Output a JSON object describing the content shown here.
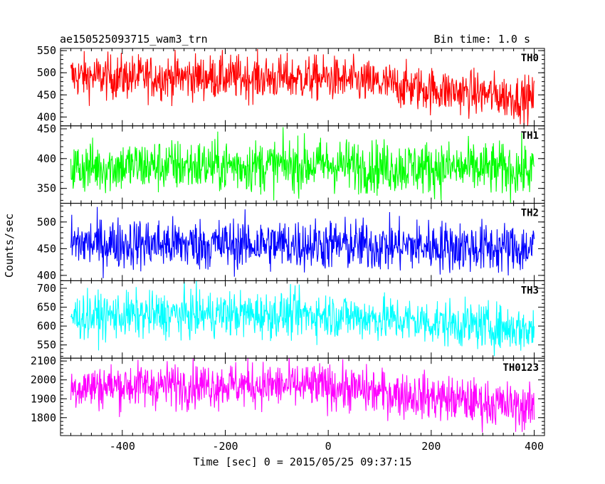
{
  "header": {
    "left": "ae150525093715_wam3_trn",
    "right": "Bin time: 1.0 s"
  },
  "chart_data": {
    "type": "line",
    "xlabel": "Time [sec] 0 = 2015/05/25 09:37:15",
    "ylabel": "Counts/sec",
    "xlim": [
      -520,
      420
    ],
    "xticks": [
      -400,
      -200,
      0,
      200,
      400
    ],
    "x_range": [
      -500,
      400
    ],
    "bin_time_s": 1.0,
    "panels": [
      {
        "name": "TH0",
        "color": "#ff0000",
        "ylim": [
          380,
          555
        ],
        "yticks": [
          400,
          450,
          500,
          550
        ],
        "trend": [
          [
            -500,
            492
          ],
          [
            -400,
            490
          ],
          [
            -300,
            490
          ],
          [
            -200,
            490
          ],
          [
            -100,
            488
          ],
          [
            0,
            487
          ],
          [
            100,
            475
          ],
          [
            200,
            462
          ],
          [
            300,
            452
          ],
          [
            400,
            440
          ]
        ],
        "spread": 25
      },
      {
        "name": "TH1",
        "color": "#00ff00",
        "ylim": [
          325,
          455
        ],
        "yticks": [
          350,
          400,
          450
        ],
        "trend": [
          [
            -500,
            385
          ],
          [
            -400,
            387
          ],
          [
            -300,
            388
          ],
          [
            -200,
            388
          ],
          [
            -100,
            388
          ],
          [
            0,
            390
          ],
          [
            100,
            386
          ],
          [
            200,
            385
          ],
          [
            300,
            383
          ],
          [
            400,
            380
          ]
        ],
        "spread": 22
      },
      {
        "name": "TH2",
        "color": "#0000ff",
        "ylim": [
          390,
          535
        ],
        "yticks": [
          400,
          450,
          500
        ],
        "trend": [
          [
            -500,
            460
          ],
          [
            -400,
            460
          ],
          [
            -300,
            458
          ],
          [
            -200,
            458
          ],
          [
            -100,
            458
          ],
          [
            0,
            458
          ],
          [
            100,
            455
          ],
          [
            200,
            455
          ],
          [
            300,
            452
          ],
          [
            400,
            450
          ]
        ],
        "spread": 24
      },
      {
        "name": "TH3",
        "color": "#00ffff",
        "ylim": [
          515,
          720
        ],
        "yticks": [
          550,
          600,
          650,
          700
        ],
        "trend": [
          [
            -500,
            625
          ],
          [
            -400,
            628
          ],
          [
            -300,
            630
          ],
          [
            -200,
            632
          ],
          [
            -100,
            630
          ],
          [
            0,
            630
          ],
          [
            100,
            620
          ],
          [
            200,
            610
          ],
          [
            300,
            600
          ],
          [
            400,
            590
          ]
        ],
        "spread": 30
      },
      {
        "name": "TH0123",
        "color": "#ff00ff",
        "ylim": [
          1705,
          2115
        ],
        "yticks": [
          1800,
          1900,
          2000,
          2100
        ],
        "trend": [
          [
            -500,
            1960
          ],
          [
            -400,
            1970
          ],
          [
            -300,
            1972
          ],
          [
            -200,
            1975
          ],
          [
            -100,
            1970
          ],
          [
            0,
            1965
          ],
          [
            100,
            1935
          ],
          [
            200,
            1910
          ],
          [
            300,
            1880
          ],
          [
            400,
            1850
          ]
        ],
        "spread": 60
      }
    ]
  }
}
